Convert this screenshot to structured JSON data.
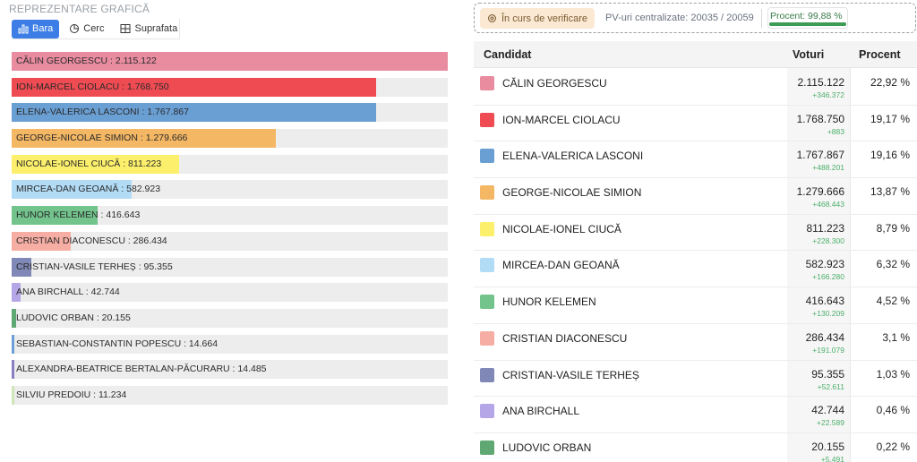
{
  "section_title": "REPREZENTARE GRAFICĂ",
  "view_tabs": [
    {
      "label": "Bara",
      "icon": "bar-chart-icon",
      "active": true
    },
    {
      "label": "Cerc",
      "icon": "pie-chart-icon",
      "active": false
    },
    {
      "label": "Suprafata",
      "icon": "treemap-icon",
      "active": false
    }
  ],
  "status": {
    "badge": "În curs de verificare",
    "pv_text": "PV-uri centralizate: 20035 / 20059",
    "progress_text": "Procent: 99,88 %",
    "progress_value": 99.88
  },
  "table_headers": {
    "candidate": "Candidat",
    "votes": "Voturi",
    "percent": "Procent"
  },
  "chart_data": {
    "type": "bar",
    "max_value": 2115122,
    "bars": [
      {
        "label": "CĂLIN GEORGESCU : 2.115.122",
        "value": 2115122,
        "color": "#e98ca0"
      },
      {
        "label": "ION-MARCEL CIOLACU : 1.768.750",
        "value": 1768750,
        "color": "#ef4b53"
      },
      {
        "label": "ELENA-VALERICA LASCONI : 1.767.867",
        "value": 1767867,
        "color": "#6a9fd4"
      },
      {
        "label": "GEORGE-NICOLAE SIMION : 1.279.666",
        "value": 1279666,
        "color": "#f4b764"
      },
      {
        "label": "NICOLAE-IONEL CIUCĂ : 811.223",
        "value": 811223,
        "color": "#fbef6b"
      },
      {
        "label": "MIRCEA-DAN GEOANĂ : 582.923",
        "value": 582923,
        "color": "#b2dbf5"
      },
      {
        "label": "HUNOR KELEMEN : 416.643",
        "value": 416643,
        "color": "#72c48c"
      },
      {
        "label": "CRISTIAN DIACONESCU : 286.434",
        "value": 286434,
        "color": "#f6ada3"
      },
      {
        "label": "CRISTIAN-VASILE TERHEȘ : 95.355",
        "value": 95355,
        "color": "#7f88b6"
      },
      {
        "label": "ANA BIRCHALL : 42.744",
        "value": 42744,
        "color": "#b5a6e8"
      },
      {
        "label": "LUDOVIC ORBAN : 20.155",
        "value": 20155,
        "color": "#5fa873"
      },
      {
        "label": "SEBASTIAN-CONSTANTIN POPESCU : 14.664",
        "value": 14664,
        "color": "#6f9fd6"
      },
      {
        "label": "ALEXANDRA-BEATRICE BERTALAN-PĂCURARU : 14.485",
        "value": 14485,
        "color": "#8b7fc4"
      },
      {
        "label": "SILVIU PREDOIU : 11.234",
        "value": 11234,
        "color": "#cfe7b8"
      }
    ]
  },
  "candidates": [
    {
      "name": "CĂLIN GEORGESCU",
      "votes": "2.115.122",
      "delta": "+346.372",
      "percent": "22,92 %",
      "color": "#e98ca0"
    },
    {
      "name": "ION-MARCEL CIOLACU",
      "votes": "1.768.750",
      "delta": "+883",
      "percent": "19,17 %",
      "color": "#ef4b53"
    },
    {
      "name": "ELENA-VALERICA LASCONI",
      "votes": "1.767.867",
      "delta": "+488.201",
      "percent": "19,16 %",
      "color": "#6a9fd4"
    },
    {
      "name": "GEORGE-NICOLAE SIMION",
      "votes": "1.279.666",
      "delta": "+468.443",
      "percent": "13,87 %",
      "color": "#f4b764"
    },
    {
      "name": "NICOLAE-IONEL CIUCĂ",
      "votes": "811.223",
      "delta": "+228.300",
      "percent": "8,79 %",
      "color": "#fbef6b"
    },
    {
      "name": "MIRCEA-DAN GEOANĂ",
      "votes": "582.923",
      "delta": "+166.280",
      "percent": "6,32 %",
      "color": "#b2dbf5"
    },
    {
      "name": "HUNOR KELEMEN",
      "votes": "416.643",
      "delta": "+130.209",
      "percent": "4,52 %",
      "color": "#72c48c"
    },
    {
      "name": "CRISTIAN DIACONESCU",
      "votes": "286.434",
      "delta": "+191.079",
      "percent": "3,1 %",
      "color": "#f6ada3"
    },
    {
      "name": "CRISTIAN-VASILE TERHEȘ",
      "votes": "95.355",
      "delta": "+52.611",
      "percent": "1,03 %",
      "color": "#7f88b6"
    },
    {
      "name": "ANA BIRCHALL",
      "votes": "42.744",
      "delta": "+22.589",
      "percent": "0,46 %",
      "color": "#b5a6e8"
    },
    {
      "name": "LUDOVIC ORBAN",
      "votes": "20.155",
      "delta": "+5.491",
      "percent": "0,22 %",
      "color": "#5fa873"
    }
  ]
}
